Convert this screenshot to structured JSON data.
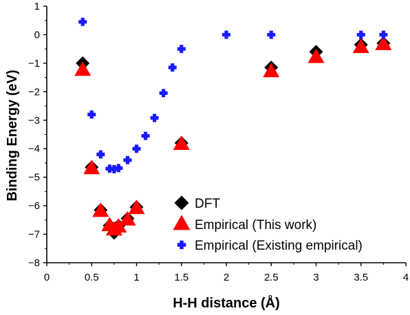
{
  "chart_data": {
    "type": "scatter",
    "xlabel": "H-H distance (Å)",
    "ylabel": "Binding Energy (eV)",
    "xlim": [
      0,
      4
    ],
    "ylim": [
      -8,
      1
    ],
    "xticks": [
      0,
      0.5,
      1,
      1.5,
      2,
      2.5,
      3,
      3.5,
      4
    ],
    "xtick_labels": [
      "0",
      "0.5",
      "1",
      "1.5",
      "2",
      "2.5",
      "3",
      "3.5",
      "4"
    ],
    "yticks": [
      1,
      0,
      -1,
      -2,
      -3,
      -4,
      -5,
      -6,
      -7,
      -8
    ],
    "ytick_labels": [
      "1",
      "0",
      "−1",
      "−2",
      "−3",
      "−4",
      "−5",
      "−6",
      "−7",
      "−8"
    ],
    "grid": false,
    "legend_position": "bottom-right",
    "series": [
      {
        "name": "DFT",
        "marker": "diamond",
        "color": "#000000",
        "x": [
          0.4,
          0.5,
          0.6,
          0.7,
          0.75,
          0.8,
          0.9,
          1.0,
          1.5,
          2.5,
          3.0,
          3.5,
          3.75
        ],
        "y": [
          -1.0,
          -4.65,
          -6.15,
          -6.7,
          -6.95,
          -6.7,
          -6.45,
          -6.05,
          -3.8,
          -1.15,
          -0.6,
          -0.35,
          -0.3
        ]
      },
      {
        "name": "Empirical (This work)",
        "marker": "triangle",
        "color": "#ff0000",
        "x": [
          0.4,
          0.5,
          0.6,
          0.7,
          0.75,
          0.8,
          0.9,
          1.0,
          1.5,
          2.5,
          3.0,
          3.5,
          3.75
        ],
        "y": [
          -1.25,
          -4.7,
          -6.2,
          -6.7,
          -6.85,
          -6.75,
          -6.5,
          -6.1,
          -3.85,
          -1.3,
          -0.8,
          -0.45,
          -0.35
        ]
      },
      {
        "name": "Empirical (Existing empirical)",
        "marker": "plus",
        "color": "#1a1aff",
        "x": [
          0.4,
          0.5,
          0.6,
          0.7,
          0.75,
          0.8,
          0.9,
          1.0,
          1.1,
          1.2,
          1.3,
          1.4,
          1.5,
          2.0,
          2.5,
          3.5,
          3.75
        ],
        "y": [
          0.45,
          -2.8,
          -4.2,
          -4.7,
          -4.72,
          -4.68,
          -4.4,
          -4.0,
          -3.55,
          -2.92,
          -2.05,
          -1.15,
          -0.5,
          0.0,
          0.0,
          0.0,
          0.0
        ]
      }
    ]
  }
}
